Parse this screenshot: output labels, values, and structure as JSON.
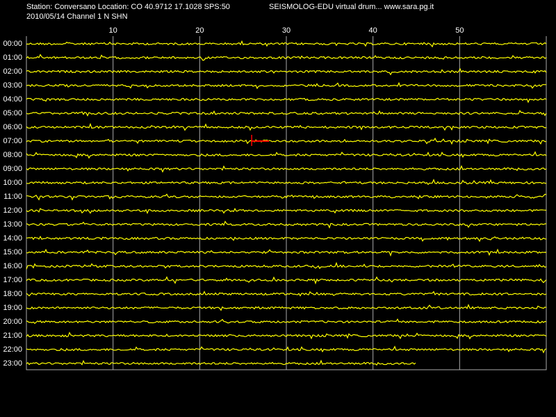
{
  "chart_data": {
    "type": "drum",
    "title": "Station: Conversano Location: CO 40.9712 17.1028 SPS:50",
    "subtitle": "SEISMOLOG-EDU virtual drum... www.sara.pg.it",
    "caption": "2010/05/14  Channel 1 N SHN",
    "categories": [
      "00:00",
      "01:00",
      "02:00",
      "03:00",
      "04:00",
      "05:00",
      "06:00",
      "07:00",
      "08:00",
      "09:00",
      "10:00",
      "11:00",
      "12:00",
      "13:00",
      "14:00",
      "15:00",
      "16:00",
      "17:00",
      "18:00",
      "19:00",
      "20:00",
      "21:00",
      "22:00",
      "23:00"
    ],
    "xlim": [
      0,
      60
    ],
    "xticks": [
      10,
      20,
      30,
      40,
      50
    ],
    "grid": true,
    "color": "#ffff00",
    "background": "#000000",
    "trace_end": 45,
    "event": {
      "row": 7,
      "x": [
        26,
        28
      ],
      "color": "#ff0000"
    }
  }
}
